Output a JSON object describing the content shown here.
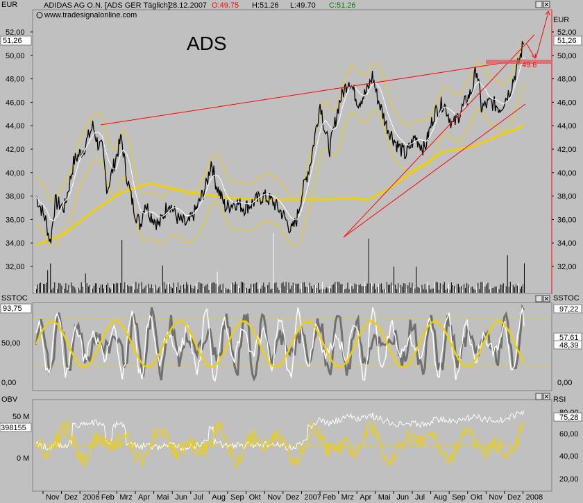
{
  "header": {
    "currency_left": "EUR",
    "currency_right": "EUR",
    "instrument": "ADIDAS AG O.N. [ADS GER  Täglich]",
    "date": "28.12.2007",
    "open": "O:49.75",
    "high": "H:51.26",
    "low": "L:49.70",
    "close": "C:51.26",
    "website": "www.tradesignalonline.com",
    "ticker_annotation": "ADS"
  },
  "colors": {
    "background": "#c0c0c0",
    "panel": "#c0c0c0",
    "price": "#000000",
    "bollinger": "#f0d000",
    "moving_average": "#f0d000",
    "trendline": "#ff0000",
    "accent_white": "#ffffff"
  },
  "time_axis": [
    "Nov",
    "Dez",
    "2006",
    "Feb",
    "Mrz",
    "Apr",
    "Mai",
    "Jun",
    "Jul",
    "Aug",
    "Sep",
    "Okt",
    "Nov",
    "Dez",
    "2007",
    "Feb",
    "Mrz",
    "Apr",
    "Mai",
    "Jun",
    "Jul",
    "Aug",
    "Sep",
    "Okt",
    "Nov",
    "Dez",
    "2008"
  ],
  "chart_data": [
    {
      "type": "line",
      "ylim": [
        30.5,
        53
      ],
      "y_ticks": [
        "52,00",
        "50,00",
        "48,00",
        "46,00",
        "44,00",
        "42,00",
        "40,00",
        "38,00",
        "36,00",
        "34,00",
        "32,00"
      ],
      "last_price_label": "51,26",
      "level_label": "49.6",
      "price_series": [
        {
          "t": 0,
          "v": 38
        },
        {
          "t": 1,
          "v": 36
        },
        {
          "t": 1.5,
          "v": 34
        },
        {
          "t": 2,
          "v": 37.5
        },
        {
          "t": 3,
          "v": 37
        },
        {
          "t": 4,
          "v": 41
        },
        {
          "t": 5,
          "v": 42
        },
        {
          "t": 6,
          "v": 44
        },
        {
          "t": 6.5,
          "v": 42.5
        },
        {
          "t": 7,
          "v": 42
        },
        {
          "t": 7.5,
          "v": 38.5
        },
        {
          "t": 8,
          "v": 40
        },
        {
          "t": 8.5,
          "v": 41.5
        },
        {
          "t": 9,
          "v": 43
        },
        {
          "t": 9.5,
          "v": 40
        },
        {
          "t": 10,
          "v": 38
        },
        {
          "t": 10.5,
          "v": 36.5
        },
        {
          "t": 11,
          "v": 35.5
        },
        {
          "t": 11.5,
          "v": 37.5
        },
        {
          "t": 12,
          "v": 36.5
        },
        {
          "t": 13,
          "v": 35.5
        },
        {
          "t": 14,
          "v": 37.5
        },
        {
          "t": 15,
          "v": 36
        },
        {
          "t": 16,
          "v": 35.5
        },
        {
          "t": 17,
          "v": 37
        },
        {
          "t": 18,
          "v": 39
        },
        {
          "t": 18.5,
          "v": 41
        },
        {
          "t": 19,
          "v": 39
        },
        {
          "t": 20,
          "v": 37
        },
        {
          "t": 21,
          "v": 37.5
        },
        {
          "t": 22,
          "v": 37
        },
        {
          "t": 23,
          "v": 37.5
        },
        {
          "t": 24,
          "v": 38
        },
        {
          "t": 25,
          "v": 37.5
        },
        {
          "t": 26,
          "v": 36.5
        },
        {
          "t": 27,
          "v": 35
        },
        {
          "t": 27.5,
          "v": 36
        },
        {
          "t": 28,
          "v": 38
        },
        {
          "t": 29,
          "v": 41
        },
        {
          "t": 30,
          "v": 46
        },
        {
          "t": 30.5,
          "v": 43.5
        },
        {
          "t": 31,
          "v": 42
        },
        {
          "t": 32,
          "v": 46
        },
        {
          "t": 33,
          "v": 48
        },
        {
          "t": 34,
          "v": 46
        },
        {
          "t": 35,
          "v": 47
        },
        {
          "t": 35.5,
          "v": 48.3
        },
        {
          "t": 36,
          "v": 46.5
        },
        {
          "t": 37,
          "v": 44
        },
        {
          "t": 38,
          "v": 42.5
        },
        {
          "t": 39,
          "v": 41.5
        },
        {
          "t": 40,
          "v": 43
        },
        {
          "t": 41,
          "v": 42
        },
        {
          "t": 42,
          "v": 45
        },
        {
          "t": 43,
          "v": 46
        },
        {
          "t": 44,
          "v": 44
        },
        {
          "t": 45,
          "v": 45.5
        },
        {
          "t": 46,
          "v": 47
        },
        {
          "t": 46.5,
          "v": 49
        },
        {
          "t": 47,
          "v": 45.5
        },
        {
          "t": 48,
          "v": 46
        },
        {
          "t": 49,
          "v": 45.5
        },
        {
          "t": 50,
          "v": 47
        },
        {
          "t": 51,
          "v": 49.5
        },
        {
          "t": 51.5,
          "v": 51.3
        }
      ],
      "moving_average": [
        {
          "t": 0,
          "v": 33.8
        },
        {
          "t": 3,
          "v": 34.8
        },
        {
          "t": 6,
          "v": 36.7
        },
        {
          "t": 9,
          "v": 38.3
        },
        {
          "t": 12,
          "v": 39.1
        },
        {
          "t": 15,
          "v": 38.5
        },
        {
          "t": 18,
          "v": 38.1
        },
        {
          "t": 21,
          "v": 37.8
        },
        {
          "t": 24,
          "v": 37.7
        },
        {
          "t": 27,
          "v": 37.7
        },
        {
          "t": 30,
          "v": 37.7
        },
        {
          "t": 33,
          "v": 37.8
        },
        {
          "t": 35,
          "v": 37.7
        },
        {
          "t": 37,
          "v": 38.5
        },
        {
          "t": 40,
          "v": 40.2
        },
        {
          "t": 43,
          "v": 41.8
        },
        {
          "t": 46,
          "v": 42.2
        },
        {
          "t": 49,
          "v": 43.2
        },
        {
          "t": 51.5,
          "v": 44
        }
      ]
    },
    {
      "type": "line",
      "title": "SSTOC",
      "ylim": [
        -10,
        110
      ],
      "y_ticks": [
        "50,00",
        "0,00"
      ],
      "left_value_label": "93,75",
      "right_labels": [
        "97,22",
        "57,61",
        "48,39"
      ]
    },
    {
      "type": "line",
      "title_left": "OBV",
      "title_right": "RSI",
      "left_value_label": "398155",
      "y_ticks_left": [
        "50 M",
        "0 M"
      ],
      "y_ticks_right": [
        "80,00",
        "60,00",
        "40,00",
        "20,00"
      ],
      "right_value_label": "75,28"
    }
  ]
}
